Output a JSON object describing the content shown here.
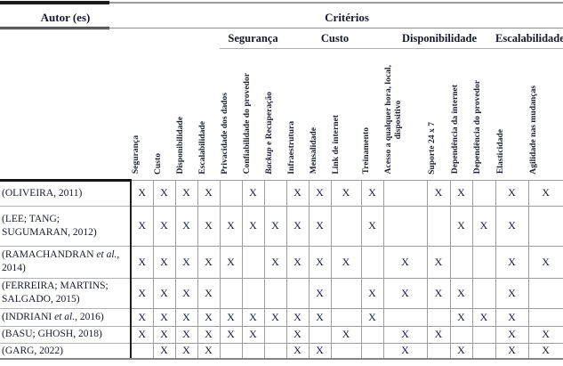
{
  "colors": {
    "ink": "#1c2133",
    "grid_line": "#9c9c9c",
    "author_divider": "#1f1f1f"
  },
  "table": {
    "header": {
      "author_label": "Autor (es)",
      "criteria_label": "Critérios",
      "groups": [
        {
          "label": "Segurança",
          "span": 3
        },
        {
          "label": "Custo",
          "span": 4
        },
        {
          "label": "Disponibilidade",
          "span": 4
        },
        {
          "label": "Escalabilidade",
          "span": 2
        }
      ],
      "columns": [
        {
          "italic": "",
          "label": "Segurança"
        },
        {
          "italic": "",
          "label": "Custo"
        },
        {
          "italic": "",
          "label": "Disponibilidade"
        },
        {
          "italic": "",
          "label": "Escalabilidade"
        },
        {
          "italic": "",
          "label": "Privacidade dos dados"
        },
        {
          "italic": "",
          "label": "Confiabilidade do provedor"
        },
        {
          "italic": "Backup",
          "label": " e Recuperação"
        },
        {
          "italic": "",
          "label": "Infraestrutura"
        },
        {
          "italic": "",
          "label": "Mensalidade"
        },
        {
          "italic": "",
          "label": "Link de internet"
        },
        {
          "italic": "",
          "label": "Treinamento"
        },
        {
          "italic": "",
          "label": "Acesso a qualquer hora, local,\ndispositivo"
        },
        {
          "italic": "",
          "label": "Suporte 24 x 7"
        },
        {
          "italic": "",
          "label": "Dependência da internet"
        },
        {
          "italic": "",
          "label": "Dependência do provedor"
        },
        {
          "italic": "",
          "label": "Elasticidade"
        },
        {
          "italic": "",
          "label": "Agilidade nas mudanças"
        }
      ]
    },
    "rows": [
      {
        "author_pre": "(OLIVEIRA, 2011)",
        "author_italic": "",
        "author_post": "",
        "marks": [
          "X",
          "X",
          "X",
          "X",
          "",
          "X",
          "",
          "X",
          "X",
          "X",
          "X",
          "",
          "X",
          "X",
          "",
          "X",
          "X"
        ]
      },
      {
        "author_pre": "(LEE; TANG; SUGUMARAN, 2012)",
        "author_italic": "",
        "author_post": "",
        "marks": [
          "X",
          "X",
          "X",
          "X",
          "X",
          "X",
          "X",
          "X",
          "X",
          "",
          "X",
          "",
          "",
          "X",
          "X",
          "X",
          ""
        ]
      },
      {
        "author_pre": "(RAMACHANDRAN ",
        "author_italic": "et al.",
        "author_post": ", 2014)",
        "marks": [
          "X",
          "X",
          "X",
          "X",
          "X",
          "",
          "X",
          "X",
          "X",
          "X",
          "",
          "X",
          "X",
          "",
          "",
          "X",
          "X"
        ]
      },
      {
        "author_pre": "(FERREIRA; MARTINS; SALGADO, 2015)",
        "author_italic": "",
        "author_post": "",
        "marks": [
          "X",
          "X",
          "X",
          "X",
          "",
          "",
          "",
          "",
          "X",
          "",
          "X",
          "X",
          "X",
          "X",
          "",
          "X",
          ""
        ]
      },
      {
        "author_pre": "(INDRIANI ",
        "author_italic": "et al.",
        "author_post": ", 2016)",
        "marks": [
          "X",
          "X",
          "X",
          "X",
          "X",
          "X",
          "X",
          "X",
          "X",
          "",
          "X",
          "",
          "",
          "X",
          "X",
          "X",
          ""
        ]
      },
      {
        "author_pre": "(BASU; GHOSH, 2018)",
        "author_italic": "",
        "author_post": "",
        "marks": [
          "X",
          "X",
          "X",
          "X",
          "X",
          "X",
          "",
          "X",
          "",
          "X",
          "",
          "X",
          "X",
          "",
          "",
          "X",
          "X"
        ]
      },
      {
        "author_pre": "(GARG, 2022)",
        "author_italic": "",
        "author_post": "",
        "marks": [
          "",
          "X",
          "X",
          "X",
          "",
          "",
          "",
          "X",
          "X",
          "",
          "",
          "X",
          "",
          "X",
          "",
          "X",
          "X"
        ]
      }
    ]
  }
}
